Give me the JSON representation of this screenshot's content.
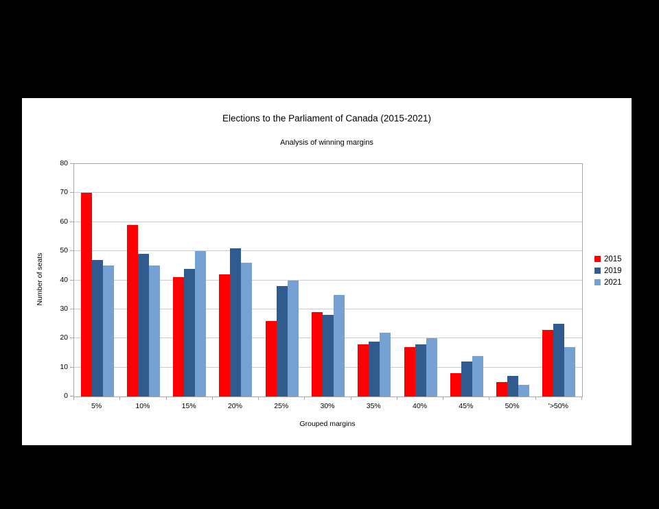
{
  "title": "Elections to the Parliament of Canada (2015-2021)",
  "subtitle": "Analysis of winning margins",
  "chart_data": {
    "type": "bar",
    "categories": [
      "5%",
      "10%",
      "15%",
      "20%",
      "25%",
      "30%",
      "35%",
      "40%",
      "45%",
      "50%",
      "'>50%"
    ],
    "series": [
      {
        "name": "2015",
        "color": "#ff0000",
        "values": [
          70,
          59,
          41,
          42,
          26,
          29,
          18,
          17,
          8,
          5,
          23
        ]
      },
      {
        "name": "2019",
        "color": "#2f5b8f",
        "values": [
          47,
          49,
          44,
          51,
          38,
          28,
          19,
          18,
          12,
          7,
          25
        ]
      },
      {
        "name": "2021",
        "color": "#75a2d3",
        "values": [
          45,
          45,
          50,
          46,
          40,
          35,
          22,
          20,
          14,
          4,
          17
        ]
      }
    ],
    "title": "Elections to the Parliament of Canada (2015-2021)",
    "subtitle": "Analysis of winning margins",
    "xlabel": "Grouped margins",
    "ylabel": "Number of seats",
    "ylim": [
      0,
      80
    ],
    "ytick_step": 10,
    "grid": true,
    "legend_position": "right"
  },
  "colors": {
    "page_background": "#000000",
    "canvas_background": "#ffffff",
    "grid": "#cdcdcd",
    "axis": "#a6a6a6",
    "text": "#000000"
  }
}
